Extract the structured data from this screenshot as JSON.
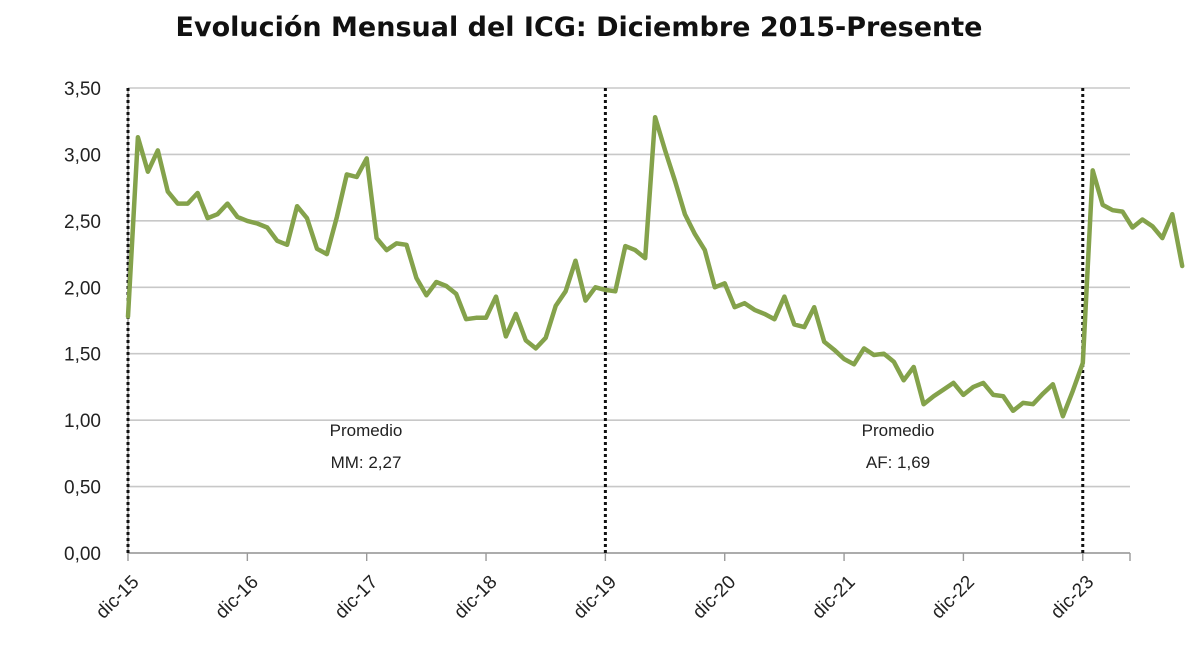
{
  "chart_data": {
    "type": "line",
    "title": "Evolución Mensual del ICG: Diciembre 2015-Presente",
    "xlabel": "",
    "ylabel": "",
    "ylim": [
      0,
      3.5
    ],
    "y_ticks": [
      "0,00",
      "0,50",
      "1,00",
      "1,50",
      "2,00",
      "2,50",
      "3,00",
      "3,50"
    ],
    "x_ticks": [
      "dic-15",
      "dic-16",
      "dic-17",
      "dic-18",
      "dic-19",
      "dic-20",
      "dic-21",
      "dic-22",
      "dic-23"
    ],
    "grid": true,
    "line_color": "#84a24b",
    "series": [
      {
        "values": [
          1.78,
          3.13,
          2.87,
          3.03,
          2.72,
          2.63,
          2.63,
          2.71,
          2.52,
          2.55,
          2.63,
          2.53,
          2.5,
          2.48,
          2.45,
          2.35,
          2.32,
          2.61,
          2.52,
          2.29,
          2.25,
          2.53,
          2.85,
          2.83,
          2.97,
          2.37,
          2.28,
          2.33,
          2.32,
          2.07,
          1.94,
          2.04,
          2.01,
          1.95,
          1.76,
          1.77,
          1.77,
          1.93,
          1.63,
          1.8,
          1.6,
          1.54,
          1.62,
          1.86,
          1.97,
          2.2,
          1.9,
          2.0,
          1.98,
          1.97,
          2.31,
          2.28,
          2.22,
          3.28,
          3.03,
          2.8,
          2.55,
          2.4,
          2.28,
          2.0,
          2.03,
          1.85,
          1.88,
          1.83,
          1.8,
          1.76,
          1.93,
          1.72,
          1.7,
          1.85,
          1.59,
          1.53,
          1.46,
          1.42,
          1.54,
          1.49,
          1.5,
          1.44,
          1.3,
          1.4,
          1.12,
          1.18,
          1.23,
          1.28,
          1.19,
          1.25,
          1.28,
          1.19,
          1.18,
          1.07,
          1.13,
          1.12,
          1.2,
          1.27,
          1.03,
          1.22,
          1.43,
          2.88,
          2.62,
          2.58,
          2.57,
          2.45,
          2.51,
          2.46,
          2.37,
          2.55,
          2.16
        ]
      }
    ],
    "markers": [
      "dic-15",
      "dic-19",
      "dic-23"
    ],
    "annotations": [
      {
        "line1": "Promedio",
        "line2": "MM: 2,27"
      },
      {
        "line1": "Promedio",
        "line2": "AF: 1,69"
      }
    ]
  }
}
